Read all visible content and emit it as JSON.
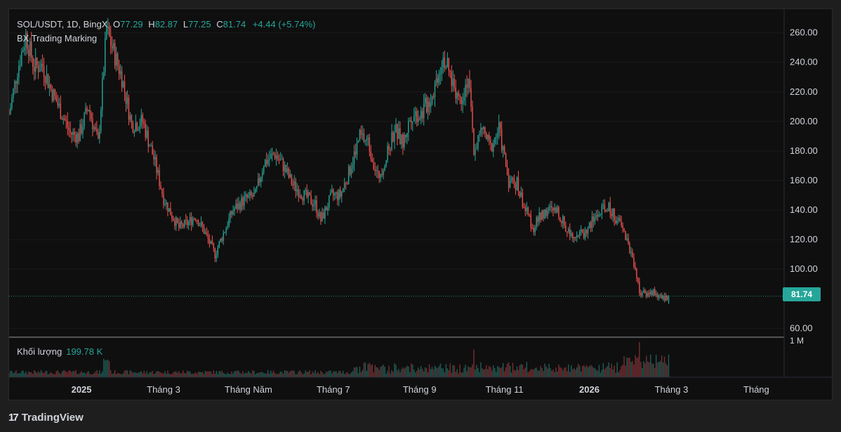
{
  "header": {
    "symbol": "SOL/USDT",
    "interval": "1D",
    "exchange": "BingX",
    "open_label": "O",
    "open": "77.29",
    "high_label": "H",
    "high": "82.87",
    "low_label": "L",
    "low": "77.25",
    "close_label": "C",
    "close": "81.74",
    "change": "+4.44 (+5.74%)",
    "indicator": "BX Trading Marking"
  },
  "volume": {
    "label": "Khối lượng",
    "value": "199.78 K",
    "scale_label": "1 M"
  },
  "last_price": "81.74",
  "brand": {
    "logo": "17",
    "name": "TradingView"
  },
  "colors": {
    "up": "#26a69a",
    "down": "#ef5350",
    "volume_up": "#1f5e57",
    "volume_down": "#7a2f33"
  },
  "chart_data": {
    "type": "candlestick",
    "title": "SOL/USDT, 1D, BingX",
    "y_ticks": [
      260,
      240,
      220,
      200,
      180,
      160,
      140,
      120,
      100,
      60
    ],
    "y_tick_labels": [
      "260.00",
      "240.00",
      "220.00",
      "200.00",
      "180.00",
      "160.00",
      "140.00",
      "120.00",
      "100.00",
      "60.00"
    ],
    "ylim": [
      54,
      276
    ],
    "x_ticks": [
      {
        "label": "2025",
        "date": "2025-01-01",
        "bold": true
      },
      {
        "label": "Tháng 3",
        "date": "2025-03-01",
        "bold": false
      },
      {
        "label": "Tháng Năm",
        "date": "2025-05-01",
        "bold": false
      },
      {
        "label": "Tháng 7",
        "date": "2025-07-01",
        "bold": false
      },
      {
        "label": "Tháng 9",
        "date": "2025-09-01",
        "bold": false
      },
      {
        "label": "Tháng 11",
        "date": "2025-11-01",
        "bold": false
      },
      {
        "label": "2026",
        "date": "2026-01-01",
        "bold": true
      },
      {
        "label": "Tháng 3",
        "date": "2026-03-01",
        "bold": false
      },
      {
        "label": "Tháng",
        "date": "2026-05-01",
        "bold": false
      }
    ],
    "x_range": [
      "2024-11-10",
      "2026-05-21"
    ],
    "price_path": [
      [
        "2024-11-10",
        205
      ],
      [
        "2024-11-16",
        235
      ],
      [
        "2024-11-22",
        258
      ],
      [
        "2024-11-28",
        237
      ],
      [
        "2024-12-04",
        238
      ],
      [
        "2024-12-10",
        222
      ],
      [
        "2024-12-18",
        205
      ],
      [
        "2024-12-24",
        192
      ],
      [
        "2024-12-30",
        190
      ],
      [
        "2025-01-06",
        210
      ],
      [
        "2025-01-13",
        185
      ],
      [
        "2025-01-19",
        262
      ],
      [
        "2025-01-23",
        250
      ],
      [
        "2025-01-30",
        230
      ],
      [
        "2025-02-06",
        198
      ],
      [
        "2025-02-14",
        200
      ],
      [
        "2025-02-22",
        175
      ],
      [
        "2025-03-01",
        148
      ],
      [
        "2025-03-05",
        140
      ],
      [
        "2025-03-12",
        128
      ],
      [
        "2025-03-18",
        131
      ],
      [
        "2025-03-24",
        136
      ],
      [
        "2025-03-30",
        126
      ],
      [
        "2025-04-07",
        110
      ],
      [
        "2025-04-12",
        122
      ],
      [
        "2025-04-20",
        140
      ],
      [
        "2025-04-28",
        147
      ],
      [
        "2025-05-06",
        150
      ],
      [
        "2025-05-12",
        172
      ],
      [
        "2025-05-20",
        178
      ],
      [
        "2025-05-26",
        170
      ],
      [
        "2025-06-02",
        157
      ],
      [
        "2025-06-10",
        150
      ],
      [
        "2025-06-18",
        144
      ],
      [
        "2025-06-22",
        133
      ],
      [
        "2025-06-30",
        150
      ],
      [
        "2025-07-06",
        150
      ],
      [
        "2025-07-12",
        165
      ],
      [
        "2025-07-20",
        190
      ],
      [
        "2025-07-26",
        186
      ],
      [
        "2025-08-02",
        162
      ],
      [
        "2025-08-08",
        175
      ],
      [
        "2025-08-14",
        195
      ],
      [
        "2025-08-20",
        185
      ],
      [
        "2025-08-26",
        205
      ],
      [
        "2025-09-02",
        205
      ],
      [
        "2025-09-10",
        218
      ],
      [
        "2025-09-18",
        245
      ],
      [
        "2025-09-22",
        233
      ],
      [
        "2025-09-30",
        215
      ],
      [
        "2025-10-06",
        230
      ],
      [
        "2025-10-10",
        180
      ],
      [
        "2025-10-16",
        195
      ],
      [
        "2025-10-22",
        182
      ],
      [
        "2025-10-28",
        195
      ],
      [
        "2025-11-04",
        160
      ],
      [
        "2025-11-10",
        158
      ],
      [
        "2025-11-16",
        140
      ],
      [
        "2025-11-22",
        128
      ],
      [
        "2025-11-28",
        138
      ],
      [
        "2025-12-04",
        140
      ],
      [
        "2025-12-10",
        138
      ],
      [
        "2025-12-16",
        126
      ],
      [
        "2025-12-22",
        124
      ],
      [
        "2025-12-28",
        124
      ],
      [
        "2026-01-06",
        136
      ],
      [
        "2026-01-14",
        142
      ],
      [
        "2026-01-20",
        135
      ],
      [
        "2026-01-26",
        125
      ],
      [
        "2026-02-02",
        105
      ],
      [
        "2026-02-06",
        85
      ],
      [
        "2026-02-10",
        83
      ],
      [
        "2026-02-16",
        85
      ],
      [
        "2026-02-22",
        80
      ],
      [
        "2026-02-27",
        81.74
      ]
    ],
    "last_close": 81.74,
    "volume_scale_max": 1000000
  }
}
